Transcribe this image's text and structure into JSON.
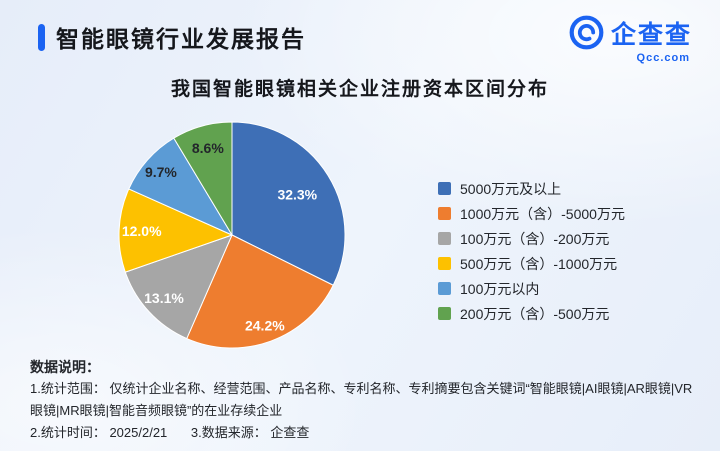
{
  "header": {
    "title": "智能眼镜行业发展报告",
    "accent_color": "#1b63f2",
    "logo": {
      "brand": "企查查",
      "domain": "Qcc.com",
      "color": "#1b63f2"
    }
  },
  "chart_data": {
    "type": "pie",
    "title": "我国智能眼镜相关企业注册资本区间分布",
    "labels": [
      "5000万元及以上",
      "1000万元（含）-5000万元",
      "100万元（含）-200万元",
      "500万元（含）-1000万元",
      "100万元以内",
      "200万元（含）-500万元"
    ],
    "values": [
      32.3,
      24.2,
      13.1,
      12.0,
      9.7,
      8.6
    ],
    "value_labels": [
      "32.3%",
      "24.2%",
      "13.1%",
      "12.0%",
      "9.7%",
      "8.6%"
    ],
    "colors": [
      "#3e6fb6",
      "#ee7d2f",
      "#a6a6a6",
      "#fdc100",
      "#5b9bd5",
      "#61a24f"
    ],
    "label_colors": [
      "#ffffff",
      "#ffffff",
      "#ffffff",
      "#ffffff",
      "#23262b",
      "#23262b"
    ],
    "unit": "%",
    "start_angle": "top",
    "direction": "clockwise",
    "legend_position": "right",
    "grid": false
  },
  "footer": {
    "heading": "数据说明：",
    "line1": "1.统计范围： 仅统计企业名称、经营范围、产品名称、专利名称、专利摘要包含关键词“智能眼镜|AI眼镜|AR眼镜|VR眼镜|MR眼镜|智能音频眼镜”的在业存续企业",
    "line2_time": "2.统计时间： 2025/2/21",
    "line2_source": "3.数据来源： 企查查"
  }
}
